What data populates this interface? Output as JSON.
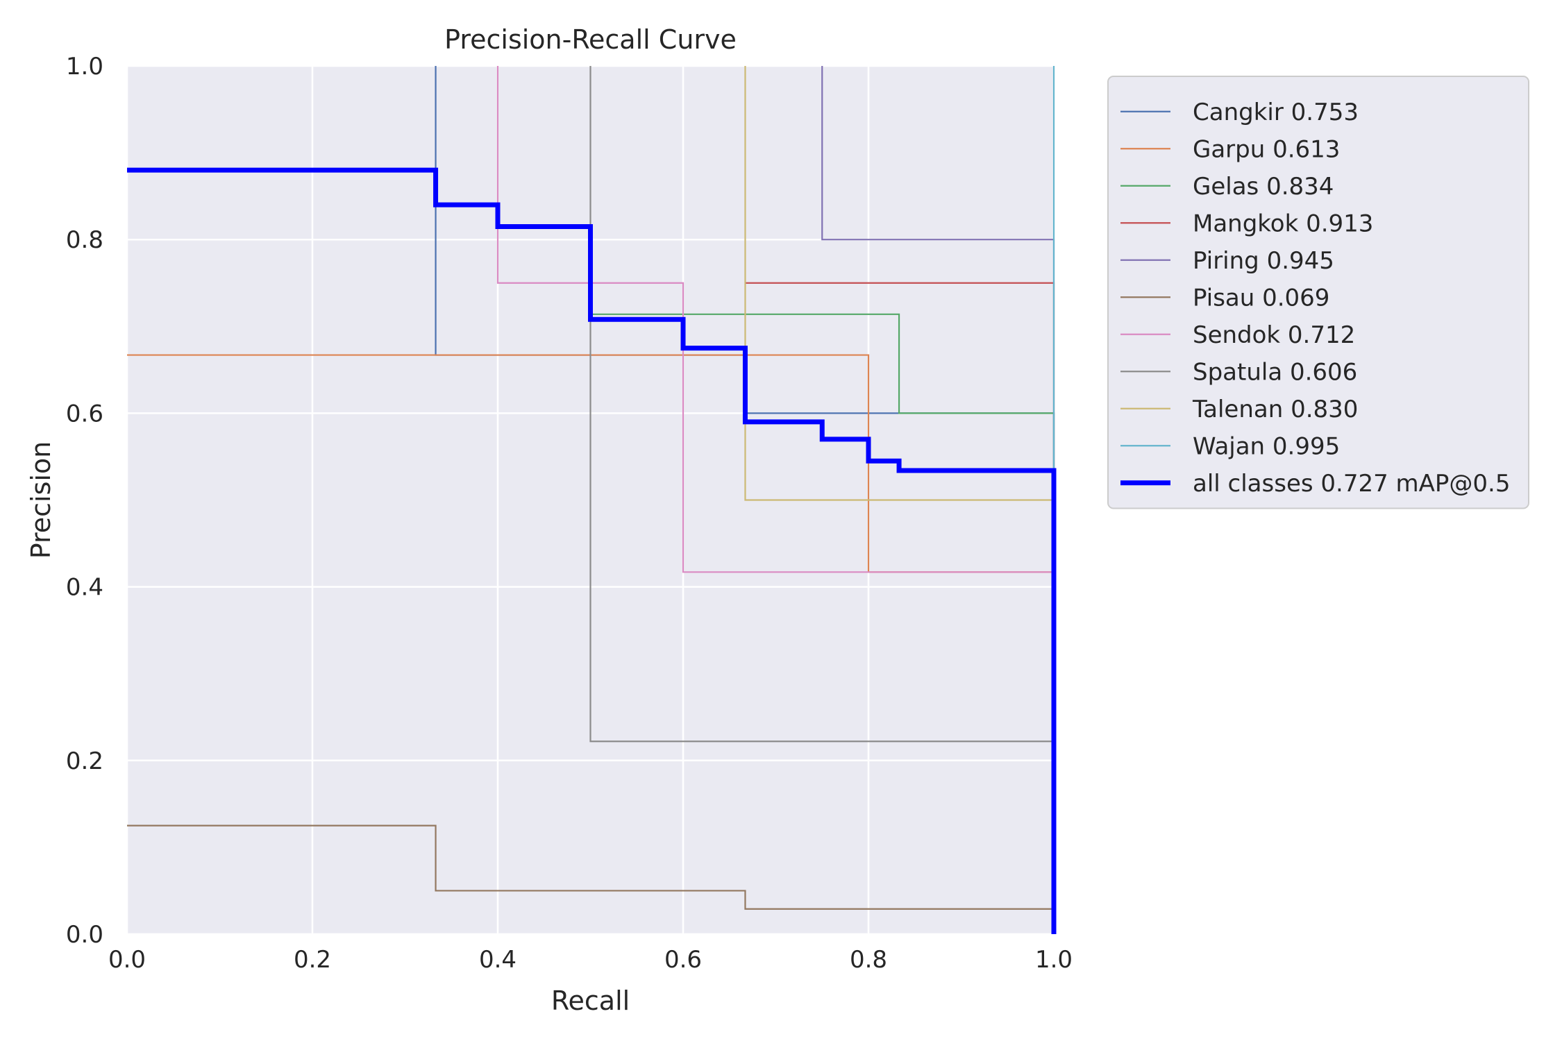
{
  "chart_data": {
    "type": "line",
    "title": "Precision-Recall Curve",
    "xlabel": "Recall",
    "ylabel": "Precision",
    "xlim": [
      0,
      1
    ],
    "ylim": [
      0,
      1
    ],
    "x_ticks": [
      "0.0",
      "0.2",
      "0.4",
      "0.6",
      "0.8",
      "1.0"
    ],
    "y_ticks": [
      "0.0",
      "0.2",
      "0.4",
      "0.6",
      "0.8",
      "1.0"
    ],
    "grid": true,
    "background": "#eaeaf2",
    "legend_position": "outside-right",
    "series": [
      {
        "name": "Cangkir 0.753",
        "color": "#4c72b0",
        "width": 1,
        "points": [
          [
            0.333,
            1.0
          ],
          [
            0.333,
            0.667
          ],
          [
            0.667,
            0.667
          ],
          [
            0.667,
            0.6
          ],
          [
            1.0,
            0.6
          ],
          [
            1.0,
            0.0
          ]
        ]
      },
      {
        "name": "Garpu 0.613",
        "color": "#dd8452",
        "width": 1,
        "points": [
          [
            0.0,
            0.667
          ],
          [
            0.8,
            0.667
          ],
          [
            0.8,
            0.417
          ],
          [
            1.0,
            0.417
          ],
          [
            1.0,
            0.0
          ]
        ]
      },
      {
        "name": "Gelas 0.834",
        "color": "#55a868",
        "width": 1,
        "points": [
          [
            0.5,
            0.714
          ],
          [
            0.833,
            0.714
          ],
          [
            0.833,
            0.6
          ],
          [
            1.0,
            0.6
          ],
          [
            1.0,
            0.0
          ]
        ]
      },
      {
        "name": "Mangkok 0.913",
        "color": "#c44e52",
        "width": 1,
        "points": [
          [
            0.667,
            0.75
          ],
          [
            1.0,
            0.75
          ],
          [
            1.0,
            0.0
          ]
        ]
      },
      {
        "name": "Piring 0.945",
        "color": "#8172b3",
        "width": 1,
        "points": [
          [
            0.75,
            1.0
          ],
          [
            0.75,
            0.8
          ],
          [
            1.0,
            0.8
          ],
          [
            1.0,
            0.0
          ]
        ]
      },
      {
        "name": "Pisau 0.069",
        "color": "#937860",
        "width": 1,
        "points": [
          [
            0.0,
            0.125
          ],
          [
            0.333,
            0.125
          ],
          [
            0.333,
            0.05
          ],
          [
            0.667,
            0.05
          ],
          [
            0.667,
            0.029
          ],
          [
            1.0,
            0.029
          ],
          [
            1.0,
            0.0
          ]
        ]
      },
      {
        "name": "Sendok 0.712",
        "color": "#da8bc3",
        "width": 1,
        "points": [
          [
            0.4,
            1.0
          ],
          [
            0.4,
            0.75
          ],
          [
            0.6,
            0.75
          ],
          [
            0.6,
            0.417
          ],
          [
            1.0,
            0.417
          ],
          [
            1.0,
            0.0
          ]
        ]
      },
      {
        "name": "Spatula 0.606",
        "color": "#8c8c8c",
        "width": 1,
        "points": [
          [
            0.5,
            1.0
          ],
          [
            0.5,
            0.222
          ],
          [
            1.0,
            0.222
          ],
          [
            1.0,
            0.0
          ]
        ]
      },
      {
        "name": "Talenan 0.830",
        "color": "#ccb974",
        "width": 1,
        "points": [
          [
            0.667,
            1.0
          ],
          [
            0.667,
            0.5
          ],
          [
            1.0,
            0.5
          ],
          [
            1.0,
            0.0
          ]
        ]
      },
      {
        "name": "Wajan 0.995",
        "color": "#64b5cd",
        "width": 1,
        "points": [
          [
            1.0,
            1.0
          ],
          [
            1.0,
            0.0
          ]
        ]
      },
      {
        "name": "all classes 0.727 mAP@0.5",
        "color": "#0000ff",
        "width": 3,
        "points": [
          [
            0.0,
            0.88
          ],
          [
            0.333,
            0.88
          ],
          [
            0.333,
            0.84
          ],
          [
            0.4,
            0.84
          ],
          [
            0.4,
            0.815
          ],
          [
            0.5,
            0.815
          ],
          [
            0.5,
            0.708
          ],
          [
            0.6,
            0.708
          ],
          [
            0.6,
            0.675
          ],
          [
            0.667,
            0.675
          ],
          [
            0.667,
            0.59
          ],
          [
            0.75,
            0.59
          ],
          [
            0.75,
            0.57
          ],
          [
            0.8,
            0.57
          ],
          [
            0.8,
            0.545
          ],
          [
            0.833,
            0.545
          ],
          [
            0.833,
            0.534
          ],
          [
            1.0,
            0.534
          ],
          [
            1.0,
            0.0
          ]
        ]
      }
    ]
  }
}
